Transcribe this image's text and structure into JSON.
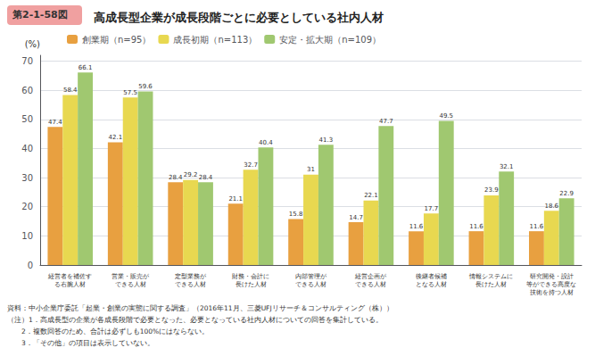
{
  "chart_data": {
    "type": "bar",
    "title": "高成長型企業が成長段階ごとに必要としている社内人材",
    "fig_label": "第2-1-58図",
    "ylabel": "(%)",
    "categories": [
      "経営者を補佐す\nる右腕人材",
      "営業・販売が\nできる人材",
      "定型業務が\nできる人材",
      "財務・会計に\n長けた人材",
      "内部管理が\nできる人材",
      "経営企画が\nできる人材",
      "後継者候補\nとなる人材",
      "情報システムに\n長けた人材",
      "研究開発・設計\n等ができる高度な\n技術を持つ人材"
    ],
    "series": [
      {
        "name": "創業期（n=95）",
        "color": "#E8A040",
        "values": [
          47.4,
          42.1,
          28.4,
          21.1,
          15.8,
          14.7,
          11.6,
          11.6,
          11.6
        ]
      },
      {
        "name": "成長初期（n=113）",
        "color": "#E8D850",
        "values": [
          58.4,
          57.5,
          29.2,
          32.7,
          31.0,
          22.1,
          17.7,
          23.9,
          18.6
        ]
      },
      {
        "name": "安定・拡大期（n=109）",
        "color": "#A0C870",
        "values": [
          66.1,
          59.6,
          28.4,
          40.4,
          41.3,
          47.7,
          49.5,
          32.1,
          22.9
        ]
      }
    ],
    "ylim": [
      0,
      72
    ],
    "yticks": [
      0,
      10,
      20,
      30,
      40,
      50,
      60,
      70
    ],
    "grid": true,
    "legend": "upper left",
    "data_labels": true,
    "annotations": [
      "資料：中小企業庁委託「起業・創業の実態に関する調査」（2016年11月、三菱UFJリサーチ＆コンサルティング（株））",
      "（注）1．高成長型の企業が各成長段階で必要となった、必要となっている社内人材についての回答を集計している。",
      "　　2．複数回答のため、合計は必ずしも100%にはならない。",
      "　　3．「その他」の項目は表示していない。"
    ]
  }
}
